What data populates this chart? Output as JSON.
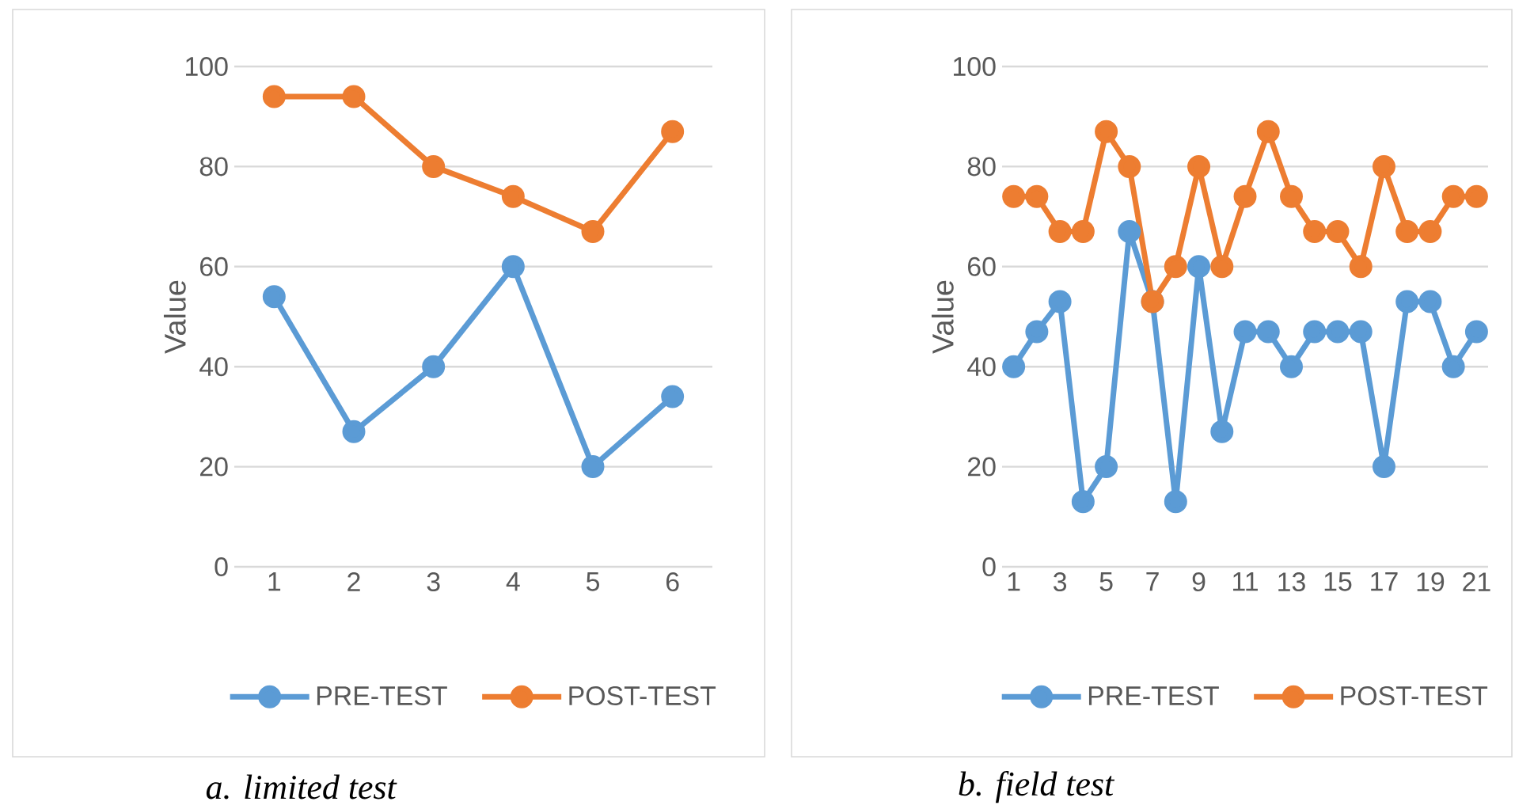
{
  "chart_data": [
    {
      "type": "line",
      "ylabel": "Value",
      "categories": [
        "1",
        "2",
        "3",
        "4",
        "5",
        "6"
      ],
      "ylim": [
        0,
        100
      ],
      "yticks": [
        0,
        20,
        40,
        60,
        80,
        100
      ],
      "grid": "y",
      "legend": "bottom",
      "marker": "circle",
      "line_style": "solid",
      "annotations": [
        "*a.  limited test*"
      ],
      "series": [
        {
          "name": "PRE-TEST",
          "color": "#5b9bd5",
          "values": [
            54,
            27,
            40,
            60,
            20,
            34
          ]
        },
        {
          "name": "POST-TEST",
          "color": "#ed7d31",
          "values": [
            94,
            94,
            80,
            74,
            67,
            87
          ]
        }
      ]
    },
    {
      "type": "line",
      "ylabel": "Value",
      "categories": [
        "1",
        null,
        "3",
        null,
        "5",
        null,
        "7",
        null,
        "9",
        null,
        "11",
        null,
        "13",
        null,
        "15",
        null,
        "17",
        null,
        "19",
        null,
        "21"
      ],
      "ylim": [
        0,
        100
      ],
      "yticks": [
        0,
        20,
        40,
        60,
        80,
        100
      ],
      "grid": "y",
      "legend": "bottom",
      "marker": "circle",
      "line_style": "solid",
      "annotations": [
        "*b.  field test*"
      ],
      "series": [
        {
          "name": "PRE-TEST",
          "color": "#5b9bd5",
          "values": [
            40,
            47,
            53,
            13,
            20,
            67,
            53,
            13,
            60,
            27,
            47,
            47,
            40,
            47,
            47,
            47,
            20,
            53,
            53,
            40,
            47
          ]
        },
        {
          "name": "POST-TEST",
          "color": "#ed7d31",
          "values": [
            74,
            74,
            67,
            67,
            87,
            80,
            53,
            60,
            80,
            60,
            74,
            87,
            74,
            67,
            67,
            60,
            80,
            67,
            67,
            74,
            74
          ]
        }
      ]
    }
  ]
}
